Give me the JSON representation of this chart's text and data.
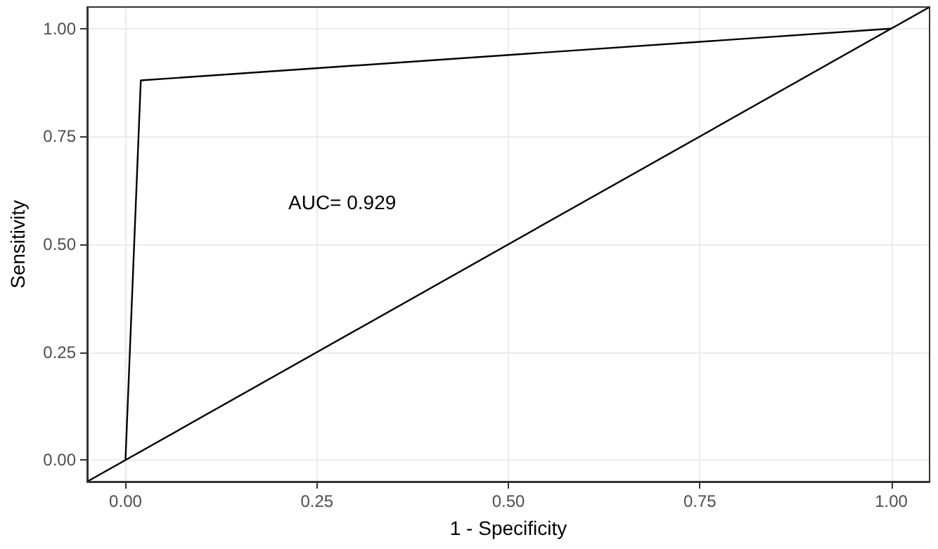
{
  "chart_data": {
    "type": "line",
    "xlabel": "1 - Specificity",
    "ylabel": "Sensitivity",
    "series": [
      {
        "color": "#000000",
        "x": [
          0,
          0.02,
          1
        ],
        "values": [
          0,
          0.88,
          1
        ]
      },
      {
        "color": "#000000",
        "x": [
          -0.05,
          1.05
        ],
        "values": [
          -0.05,
          1.05
        ]
      }
    ],
    "xlim": [
      -0.05,
      1.05
    ],
    "ylim": [
      -0.05,
      1.05
    ],
    "xticks": [
      {
        "value": 0,
        "label": "0.00"
      },
      {
        "value": 0.25,
        "label": "0.25"
      },
      {
        "value": 0.5,
        "label": "0.50"
      },
      {
        "value": 0.75,
        "label": "0.75"
      },
      {
        "value": 1,
        "label": "1.00"
      }
    ],
    "yticks": [
      {
        "value": 0,
        "label": "0.00"
      },
      {
        "value": 0.25,
        "label": "0.25"
      },
      {
        "value": 0.5,
        "label": "0.50"
      },
      {
        "value": 0.75,
        "label": "0.75"
      },
      {
        "value": 1,
        "label": "1.00"
      }
    ],
    "annotations": [
      "AUC= 0.929"
    ],
    "grid": true,
    "marker": "none",
    "line_style": "solid"
  }
}
